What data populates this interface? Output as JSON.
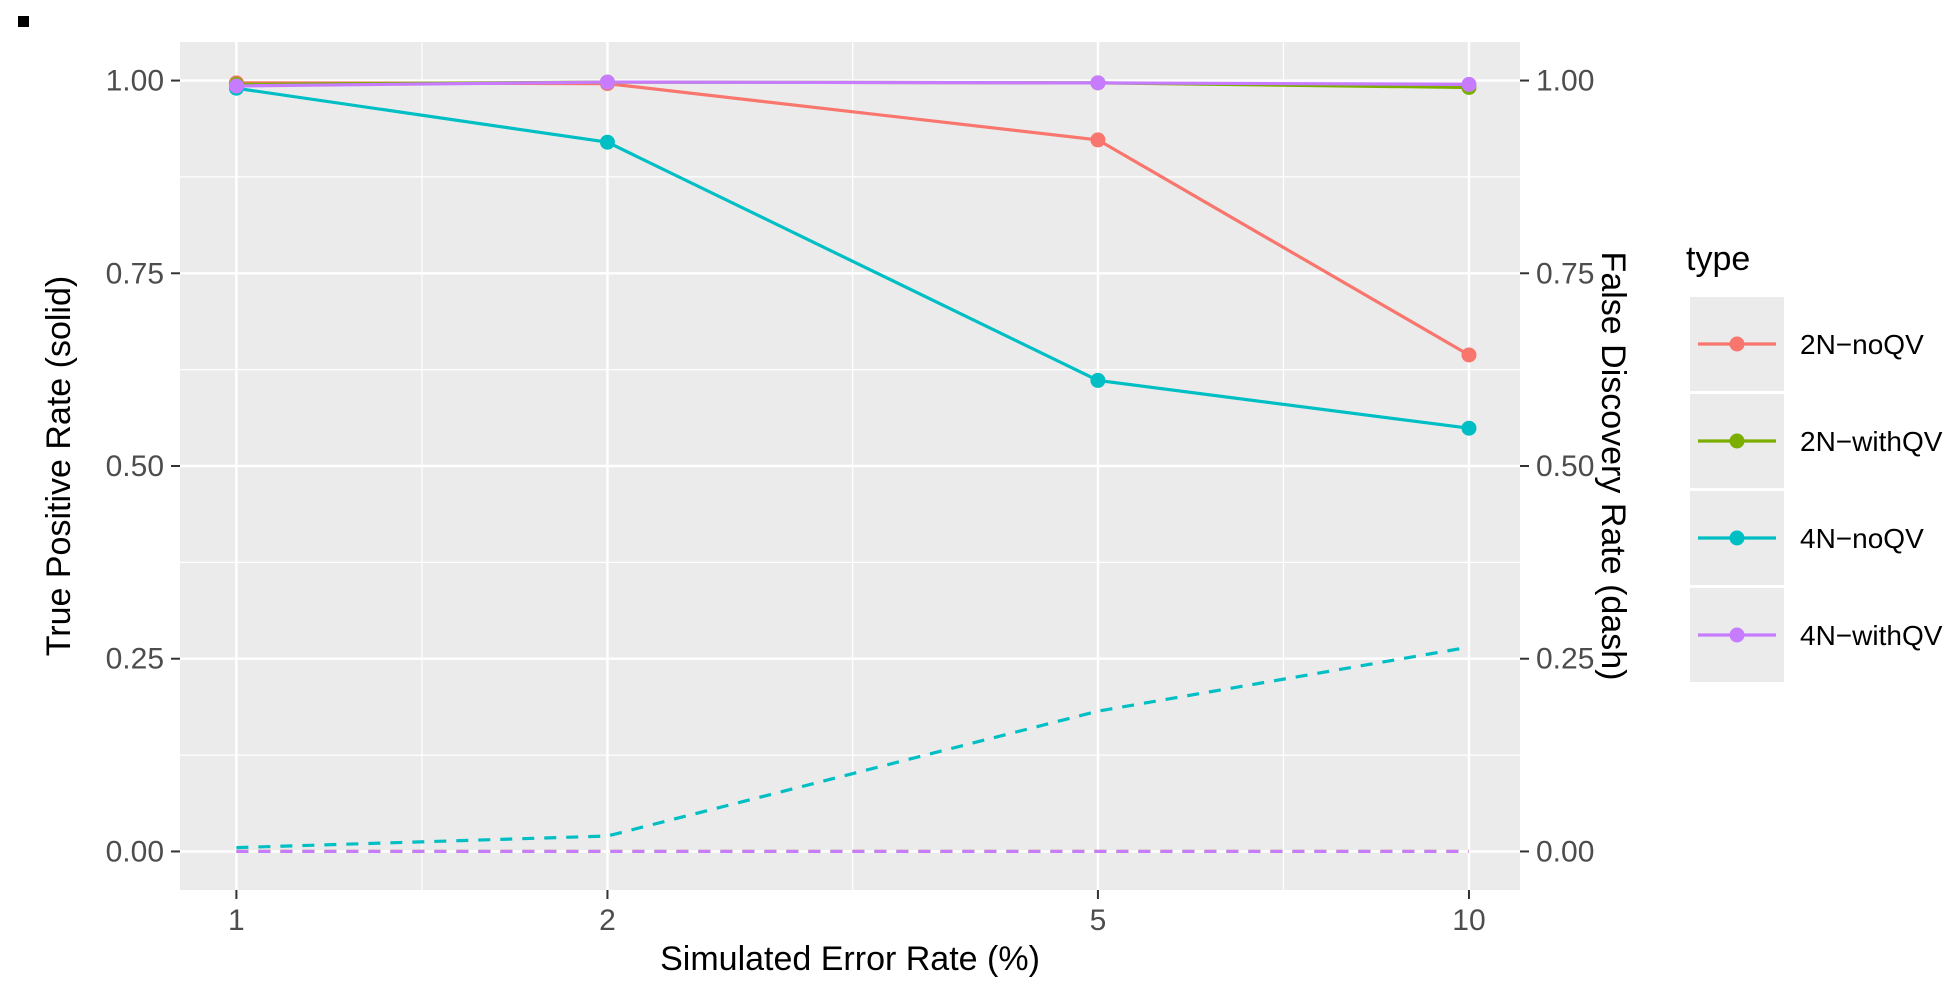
{
  "chart_data": {
    "type": "line",
    "x": [
      1,
      2,
      5,
      10
    ],
    "xlabel": "Simulated Error Rate (%)",
    "ylabel_left": "True Positive Rate (solid)",
    "ylabel_right": "False Discovery Rate (dash)",
    "x_ticks": [
      1,
      2,
      5,
      10
    ],
    "x_tick_labels": [
      "1",
      "2",
      "5",
      "10"
    ],
    "x_scale": "log",
    "x_range": [
      0.9,
      11.0
    ],
    "ylim": [
      -0.05,
      1.05
    ],
    "y_ticks": [
      0,
      0.25,
      0.5,
      0.75,
      1.0
    ],
    "y_tick_labels": [
      "0.00",
      "0.25",
      "0.50",
      "0.75",
      "1.00"
    ],
    "grid": true,
    "legend_title": "type",
    "legend_position": "right",
    "series": [
      {
        "name": "2N−noQV",
        "color": "#F8766D",
        "tpr": [
          0.997,
          0.996,
          0.923,
          0.644
        ],
        "fdr": [
          0.0,
          0.0,
          0.0,
          0.0
        ]
      },
      {
        "name": "2N−withQV",
        "color": "#7CAE00",
        "tpr": [
          0.995,
          0.998,
          0.997,
          0.991
        ],
        "fdr": [
          0.0,
          0.0,
          0.0,
          0.0
        ]
      },
      {
        "name": "4N−noQV",
        "color": "#00BFC4",
        "tpr": [
          0.99,
          0.92,
          0.611,
          0.549
        ],
        "fdr": [
          0.005,
          0.02,
          0.182,
          0.265
        ]
      },
      {
        "name": "4N−withQV",
        "color": "#C77CFF",
        "tpr": [
          0.993,
          0.998,
          0.997,
          0.995
        ],
        "fdr": [
          0.0,
          0.0,
          0.0,
          0.0
        ]
      }
    ]
  }
}
